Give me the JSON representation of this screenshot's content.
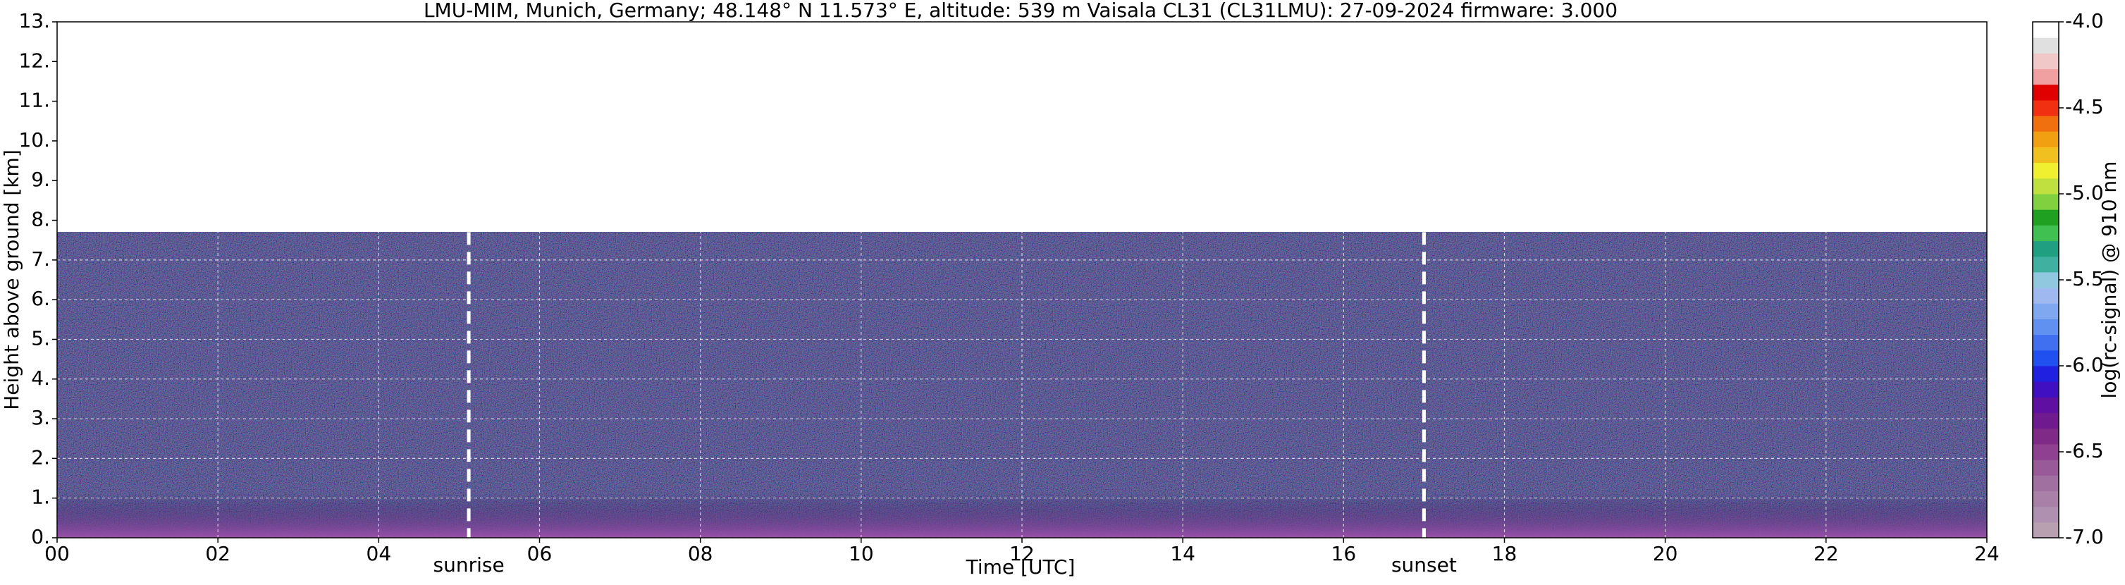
{
  "chart_data": {
    "type": "heatmap",
    "title": "LMU-MIM, Munich, Germany; 48.148° N 11.573° E, altitude: 539 m    Vaisala CL31 (CL31LMU): 27-09-2024    firmware: 3.000",
    "x_label": "Time [UTC]",
    "y_label": "Height above ground [km]",
    "xlim": [
      0,
      24
    ],
    "xticks": [
      {
        "value": 0,
        "label": "00"
      },
      {
        "value": 2,
        "label": "02"
      },
      {
        "value": 4,
        "label": "04"
      },
      {
        "value": 6,
        "label": "06"
      },
      {
        "value": 8,
        "label": "08"
      },
      10,
      12,
      14,
      16,
      18,
      20,
      22,
      24
    ],
    "ylim": [
      0,
      13
    ],
    "yticks": [
      {
        "value": 0,
        "label": "0."
      },
      {
        "value": 1,
        "label": "1."
      },
      {
        "value": 2,
        "label": "2."
      },
      {
        "value": 3,
        "label": "3."
      },
      {
        "value": 4,
        "label": "4."
      },
      {
        "value": 5,
        "label": "5."
      },
      {
        "value": 6,
        "label": "6."
      },
      {
        "value": 7,
        "label": "7."
      },
      {
        "value": 8,
        "label": "8."
      },
      {
        "value": 9,
        "label": "9."
      },
      {
        "value": 10,
        "label": "10."
      },
      {
        "value": 11,
        "label": "11."
      },
      {
        "value": 12,
        "label": "12."
      },
      {
        "value": 13,
        "label": "13."
      }
    ],
    "grid": true,
    "markers": [
      {
        "x": 5.12,
        "label": "sunrise"
      },
      {
        "x": 17.0,
        "label": "sunset"
      }
    ],
    "colorbar": {
      "label": "log(rc-signal) @ 910 nm",
      "lim": [
        -7,
        -4
      ],
      "ticks": [
        {
          "value": -7,
          "label": "-7.0"
        },
        -6.5,
        {
          "value": -6,
          "label": "-6.0"
        },
        -5.5,
        {
          "value": -5,
          "label": "-5.0"
        },
        -4.5,
        {
          "value": -4,
          "label": "-4.0"
        }
      ],
      "colors": [
        "#b8a0b0",
        "#b090b0",
        "#a880a8",
        "#a070a0",
        "#985a98",
        "#904090",
        "#802a88",
        "#701a90",
        "#6010a0",
        "#4010c0",
        "#2020e0",
        "#2050f0",
        "#4070f0",
        "#6090f0",
        "#80a8f0",
        "#a0b8f0",
        "#90c8e0",
        "#40b0a0",
        "#20a080",
        "#40c050",
        "#20a020",
        "#80d040",
        "#c0e040",
        "#f0f030",
        "#f0c020",
        "#f0a010",
        "#f07010",
        "#f03010",
        "#e00000",
        "#f0a0a0",
        "#f0c8c8",
        "#e0e0e0",
        "#ffffff"
      ]
    }
  }
}
